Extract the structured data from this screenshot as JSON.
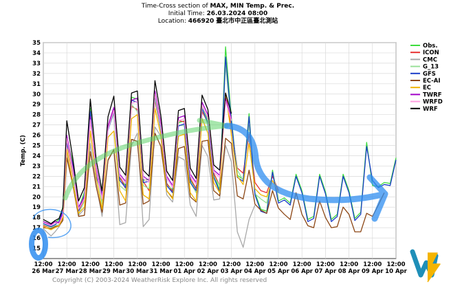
{
  "chart_data": {
    "type": "line",
    "title_prefix": "Time-Cross section of ",
    "title_bold": "MAX, MIN Temp. & Prec.",
    "initial_prefix": "Initial Time: ",
    "initial_time": "26.03.2024 08:00",
    "location_prefix": "Location: ",
    "location_id": "466920",
    "location_name": "臺北市中正區臺北測站",
    "ylabel": "Temp. (C)",
    "ylim": [
      14,
      35
    ],
    "yticks": [
      15,
      16,
      17,
      18,
      19,
      20,
      21,
      22,
      23,
      24,
      25,
      26,
      27,
      28,
      29,
      30,
      31,
      32,
      33,
      34,
      35
    ],
    "xlim": [
      0,
      15
    ],
    "tick_time": "12:00",
    "x_dates": [
      "26 Mar",
      "27 Mar",
      "28 Mar",
      "29 Mar",
      "30 Mar",
      "31 Mar",
      "01 Apr",
      "02 Apr",
      "03 Apr",
      "04 Apr",
      "05 Apr",
      "06 Apr",
      "07 Apr",
      "08 Apr",
      "09 Apr",
      "10 Apr"
    ],
    "copyright": "Copyright (C) 2003-2024 WeatherRisk Explore Inc. All rights reserved",
    "series": [
      {
        "name": "Obs.",
        "color": "#3ddc3d",
        "x": [
          0,
          0.33,
          0.5,
          0.67,
          0.83,
          1,
          1.25,
          1.5,
          1.75,
          2,
          2.25,
          2.5,
          2.75,
          3,
          3.25,
          3.5,
          3.75,
          4,
          4.25,
          4.5,
          4.75,
          5,
          5.25,
          5.5,
          5.75,
          6,
          6.25,
          6.5,
          6.75,
          7,
          7.25,
          7.5,
          7.75,
          8,
          8.25,
          8.5,
          8.75,
          9,
          9.25,
          9.5,
          9.75,
          10,
          10.25,
          10.5,
          10.75,
          11,
          11.25,
          11.5,
          11.75,
          12,
          12.25,
          12.5,
          12.75,
          13,
          13.25,
          13.5,
          13.75,
          14,
          14.25,
          14.5,
          14.75,
          15
        ],
        "values": [
          17.6,
          17.3,
          17.5,
          17.8,
          19,
          25.5,
          23.5,
          18.8,
          20.5,
          28.6,
          22.3,
          20.5,
          26.8,
          28.6,
          21.8,
          21.1,
          29.7,
          29.5,
          21.6,
          21.7,
          30.2,
          27,
          21.3,
          20.6,
          27.2,
          27.4,
          21.6,
          20.8,
          28.9,
          27.5,
          22.1,
          20.7,
          34.6,
          27.6,
          22.1,
          21.7,
          28.1,
          20.4,
          18.8,
          18.6,
          22.6,
          19.6,
          19.9,
          19.4,
          22.2,
          20.6,
          17.8,
          18.1,
          22.2,
          20.5,
          17.8,
          18.3,
          22.2,
          20.6,
          17.9,
          18.5,
          25.3,
          21.1,
          21,
          21.4,
          21.3,
          23.8
        ]
      },
      {
        "name": "ICON",
        "color": "#e83030",
        "x": [
          0,
          0.33,
          0.5,
          0.67,
          0.83,
          1,
          1.25,
          1.5,
          1.75,
          2,
          2.25,
          2.5,
          2.75,
          3,
          3.25,
          3.5,
          3.75,
          4,
          4.25,
          4.5,
          4.75,
          5,
          5.25,
          5.5,
          5.75,
          6,
          6.25,
          6.5,
          6.75,
          7,
          7.25,
          7.5,
          7.75,
          8,
          8.25,
          8.5,
          8.75,
          9,
          9.25,
          9.5,
          9.75,
          10
        ],
        "values": [
          17.2,
          17,
          17.2,
          17.1,
          18,
          25.3,
          22.2,
          18.6,
          19.8,
          27.5,
          22.8,
          19.7,
          26.9,
          28.6,
          22,
          20.8,
          28.8,
          28.5,
          21.5,
          20.6,
          29.4,
          26.5,
          21.3,
          20.5,
          27.4,
          27.3,
          21.8,
          20.8,
          28.3,
          27.2,
          22.3,
          21.1,
          30.1,
          26.8,
          22.8,
          22.3,
          26.1,
          21.4,
          20.6,
          20.4,
          22,
          20.6
        ]
      },
      {
        "name": "CMC",
        "color": "#a8a8a8",
        "x": [
          0,
          0.33,
          0.5,
          0.67,
          0.83,
          1,
          1.25,
          1.5,
          1.75,
          2,
          2.25,
          2.5,
          2.75,
          3,
          3.25,
          3.5,
          3.75,
          4,
          4.25,
          4.5,
          4.75,
          5,
          5.25,
          5.5,
          5.75,
          6,
          6.25,
          6.5,
          6.75,
          7,
          7.25,
          7.5,
          7.75,
          8,
          8.25,
          8.5,
          8.75,
          9
        ],
        "values": [
          16.9,
          16.2,
          16.6,
          17.1,
          17.8,
          24.3,
          21.4,
          18.2,
          18.8,
          25.2,
          21.2,
          18.1,
          23.5,
          24.6,
          17.3,
          17.5,
          25,
          26.2,
          17.1,
          17.8,
          26.8,
          25.9,
          20.2,
          19.5,
          23.9,
          23.6,
          19.2,
          18.1,
          25,
          23.9,
          19.7,
          19.8,
          25,
          23.4,
          16.6,
          15.1,
          17.8,
          19.2
        ]
      },
      {
        "name": "G_13",
        "color": "#98e098",
        "x": [
          0,
          0.33,
          0.5,
          0.67,
          0.83,
          1,
          1.25,
          1.5,
          1.75,
          2,
          2.25,
          2.5,
          2.75,
          3,
          3.25,
          3.5,
          3.75,
          4,
          4.25,
          4.5,
          4.75,
          5,
          5.25,
          5.5,
          5.75,
          6,
          6.25,
          6.5,
          6.75,
          7,
          7.25,
          7.5,
          7.75,
          8,
          8.25,
          8.5,
          8.75,
          9,
          9.25,
          9.5,
          9.75,
          10
        ],
        "values": [
          17.3,
          17,
          17.2,
          17.3,
          18.1,
          25.6,
          22.4,
          18.3,
          19.6,
          28.3,
          22.6,
          19.3,
          26.6,
          28.1,
          21.1,
          20.6,
          29,
          28.3,
          21.1,
          20.8,
          29.6,
          26.5,
          21,
          20.8,
          27,
          26.9,
          21.4,
          20.4,
          28.6,
          27,
          22,
          21.1,
          32.8,
          27,
          22.6,
          21.6,
          27,
          20.3,
          19.8,
          19.4,
          22.4,
          19.9
        ]
      },
      {
        "name": "GFS",
        "color": "#1a3cc8",
        "x": [
          0,
          0.33,
          0.5,
          0.67,
          0.83,
          1,
          1.25,
          1.5,
          1.75,
          2,
          2.25,
          2.5,
          2.75,
          3,
          3.25,
          3.5,
          3.75,
          4,
          4.25,
          4.5,
          4.75,
          5,
          5.25,
          5.5,
          5.75,
          6,
          6.25,
          6.5,
          6.75,
          7,
          7.25,
          7.5,
          7.75,
          8,
          8.25,
          8.5,
          8.75,
          9,
          9.25,
          9.5,
          9.75,
          10,
          10.25,
          10.5,
          10.75,
          11,
          11.25,
          11.5,
          11.75,
          12,
          12.25,
          12.5,
          12.75,
          13,
          13.25,
          13.5,
          13.75,
          14,
          14.25,
          14.5,
          14.75,
          15
        ],
        "values": [
          17.4,
          17.1,
          17.3,
          17.6,
          18.7,
          25.2,
          23.2,
          18.6,
          20.2,
          28.3,
          22,
          20.3,
          26.5,
          28.3,
          21.6,
          20.9,
          29.4,
          29.2,
          21.4,
          21.5,
          29.9,
          26.7,
          21.1,
          20.4,
          26.9,
          27.1,
          21.4,
          20.6,
          28.6,
          27.2,
          21.9,
          20.5,
          33.6,
          27.3,
          21.9,
          21.5,
          27.8,
          20.2,
          18.6,
          18.4,
          22.4,
          19.4,
          19.7,
          19.2,
          22,
          20.4,
          17.6,
          17.9,
          22,
          20.3,
          17.6,
          18.1,
          22,
          20.4,
          17.7,
          18.3,
          24.9,
          21.6,
          20.9,
          21.2,
          21.1,
          23.6
        ]
      },
      {
        "name": "EC-AI",
        "color": "#8b4513",
        "x": [
          0,
          0.33,
          0.5,
          0.67,
          0.83,
          1,
          1.25,
          1.5,
          1.75,
          2,
          2.25,
          2.5,
          2.75,
          3,
          3.25,
          3.5,
          3.75,
          4,
          4.25,
          4.5,
          4.75,
          5,
          5.25,
          5.5,
          5.75,
          6,
          6.25,
          6.5,
          6.75,
          7,
          7.25,
          7.5,
          7.75,
          8,
          8.25,
          8.5,
          8.75,
          9,
          9.25,
          9.5,
          9.75,
          10,
          10.25,
          10.5,
          10.75,
          11,
          11.25,
          11.5,
          11.75,
          12,
          12.25,
          12.5,
          12.75,
          13,
          13.25,
          13.5,
          13.75,
          14,
          14.25,
          14.5
        ],
        "values": [
          17,
          16.9,
          17.1,
          17.2,
          17.7,
          23.8,
          21.2,
          18.1,
          18.2,
          24.4,
          21,
          18.5,
          23.6,
          24.6,
          19.2,
          19.4,
          25.6,
          25.4,
          19.3,
          19.6,
          26.2,
          24.9,
          20.6,
          19.9,
          24.7,
          24.9,
          20,
          19.5,
          25.4,
          25.5,
          20.6,
          20.1,
          25.7,
          25.2,
          20.1,
          19.8,
          22.6,
          19.3,
          18.7,
          18.4,
          20.6,
          18.9,
          18.3,
          17.8,
          20.4,
          18.3,
          17.2,
          17,
          19.6,
          18,
          17,
          17.1,
          19,
          18.3,
          16.6,
          16.6,
          18.4,
          18.1,
          19.2,
          20.4
        ]
      },
      {
        "name": "EC",
        "color": "#f0b400",
        "x": [
          0,
          0.33,
          0.5,
          0.67,
          0.83,
          1,
          1.25,
          1.5,
          1.75,
          2,
          2.25,
          2.5,
          2.75,
          3,
          3.25,
          3.5,
          3.75,
          4,
          4.25,
          4.5,
          4.75,
          5,
          5.25,
          5.5,
          5.75,
          6,
          6.25,
          6.5,
          6.75,
          7,
          7.25,
          7.5,
          7.75,
          8,
          8.25,
          8.5,
          8.75,
          9,
          9.25,
          9.5,
          9.75,
          10
        ],
        "values": [
          17.1,
          16.8,
          17,
          17.2,
          18,
          24.6,
          21.4,
          18.4,
          19,
          26.4,
          21.8,
          18.8,
          25.8,
          26.4,
          20.6,
          19.6,
          27.6,
          28,
          20.2,
          19.8,
          28.6,
          26,
          20.6,
          19.8,
          25.9,
          26.1,
          20.4,
          19.6,
          27.6,
          26.2,
          21.4,
          20.4,
          30.1,
          26,
          22,
          21.2,
          25.2,
          20.8,
          20.2,
          20,
          21.6,
          20.4
        ]
      },
      {
        "name": "TWRF",
        "color": "#a000c8",
        "x": [
          0,
          0.33,
          0.5,
          0.67,
          0.83,
          1,
          1.25,
          1.5,
          1.75,
          2,
          2.25,
          2.5,
          2.75,
          3,
          3.25,
          3.5,
          3.75,
          4,
          4.25,
          4.5,
          4.75,
          5,
          5.25,
          5.5,
          5.75,
          6,
          6.25,
          6.5,
          6.75,
          7,
          7.25,
          7.5,
          7.75,
          8
        ],
        "values": [
          17.6,
          17.3,
          17.6,
          17.5,
          18.4,
          26,
          22.9,
          19,
          20,
          27.8,
          22.8,
          20,
          26.9,
          28.7,
          22.2,
          21.5,
          29.4,
          29.6,
          22,
          21.6,
          30.3,
          27.2,
          22,
          21.1,
          27.7,
          27.9,
          22.2,
          21.4,
          29.2,
          28,
          22.6,
          22.1,
          29.6,
          27.6
        ]
      },
      {
        "name": "WRFD",
        "color": "#ff9ee0",
        "x": [
          0,
          0.33,
          0.5,
          0.67,
          0.83,
          1,
          1.25,
          1.5,
          1.75,
          2,
          2.25,
          2.5,
          2.75,
          3,
          3.25,
          3.5,
          3.75,
          4,
          4.25,
          4.5,
          4.75,
          5,
          5.25,
          5.5,
          5.75,
          6,
          6.25,
          6.5,
          6.75,
          7,
          7.25,
          7.5,
          7.75,
          8
        ],
        "values": [
          17.5,
          17.2,
          17.5,
          17.4,
          18.2,
          25.7,
          22.6,
          18.8,
          19.8,
          27.5,
          22.5,
          19.8,
          26.6,
          28.4,
          22,
          21.3,
          29.1,
          29.3,
          21.8,
          21.4,
          30,
          26.9,
          21.8,
          20.9,
          27.4,
          27.6,
          22,
          21.2,
          28.9,
          27.7,
          22.4,
          21.9,
          29.3,
          27.4
        ]
      },
      {
        "name": "WRF",
        "color": "#000000",
        "x": [
          0,
          0.33,
          0.5,
          0.67,
          0.83,
          1,
          1.25,
          1.5,
          1.75,
          2,
          2.25,
          2.5,
          2.75,
          3,
          3.25,
          3.5,
          3.75,
          4,
          4.25,
          4.5,
          4.75,
          5,
          5.25,
          5.5,
          5.75,
          6,
          6.25,
          6.5,
          6.75,
          7,
          7.25,
          7.5,
          7.75,
          8
        ],
        "values": [
          17.8,
          17.4,
          17.7,
          17.9,
          18.9,
          27.4,
          23.8,
          19.6,
          20.9,
          29.5,
          23.6,
          20.6,
          27.8,
          29.8,
          22.9,
          22.1,
          30.1,
          30.3,
          22.6,
          22,
          31.3,
          27.9,
          22.5,
          21.6,
          28.4,
          28.6,
          22.8,
          21.8,
          29.9,
          28.5,
          23.1,
          22.6,
          30.1,
          28.1
        ]
      }
    ]
  }
}
